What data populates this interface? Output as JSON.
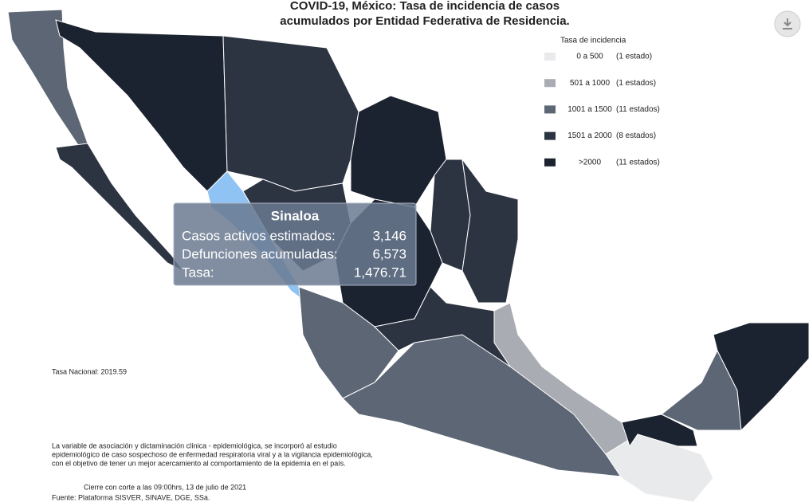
{
  "title": [
    "COVID-19, México: Tasa de incidencia de casos",
    "acumulados por Entidad Federativa de Residencia."
  ],
  "legend": {
    "title": "Tasa de incidencia",
    "items": [
      {
        "range": "0 a 500",
        "count": "(1 estado)",
        "color": "#e9eaec"
      },
      {
        "range": "501 a 1000",
        "count": "(1 estados)",
        "color": "#a9adb3"
      },
      {
        "range": "1001 a 1500",
        "count": "(11 estados)",
        "color": "#5d6675"
      },
      {
        "range": "1501 a 2000",
        "count": "(8 estados)",
        "color": "#2c3442"
      },
      {
        "range": ">2000",
        "count": "(11 estados)",
        "color": "#1c2330"
      }
    ]
  },
  "tooltip": {
    "title": "Sinaloa",
    "rows": [
      {
        "label": "Casos activos estimados:",
        "value": "3,146"
      },
      {
        "label": "Defunciones acumuladas:",
        "value": "6,573"
      },
      {
        "label": "Tasa:",
        "value": "1,476.71"
      }
    ]
  },
  "national_rate": "Tasa Nacional: 2019.59",
  "note": [
    "La variable de asociación y dictaminación clínica - epidemiológica, se incorporó al estudio",
    "epidemiológico de caso sospechoso de enfermedad respiratoria viral y a la vigilancia epidemiológica,",
    "con el objetivo de tener un mejor acercamiento al comportamiento de la epidemia en el país."
  ],
  "cutoff": "Cierre con corte a las 09:00hrs, 13 de julio de 2021",
  "source": "Fuente: Plataforma SISVER, SINAVE, DGE, SSa."
}
